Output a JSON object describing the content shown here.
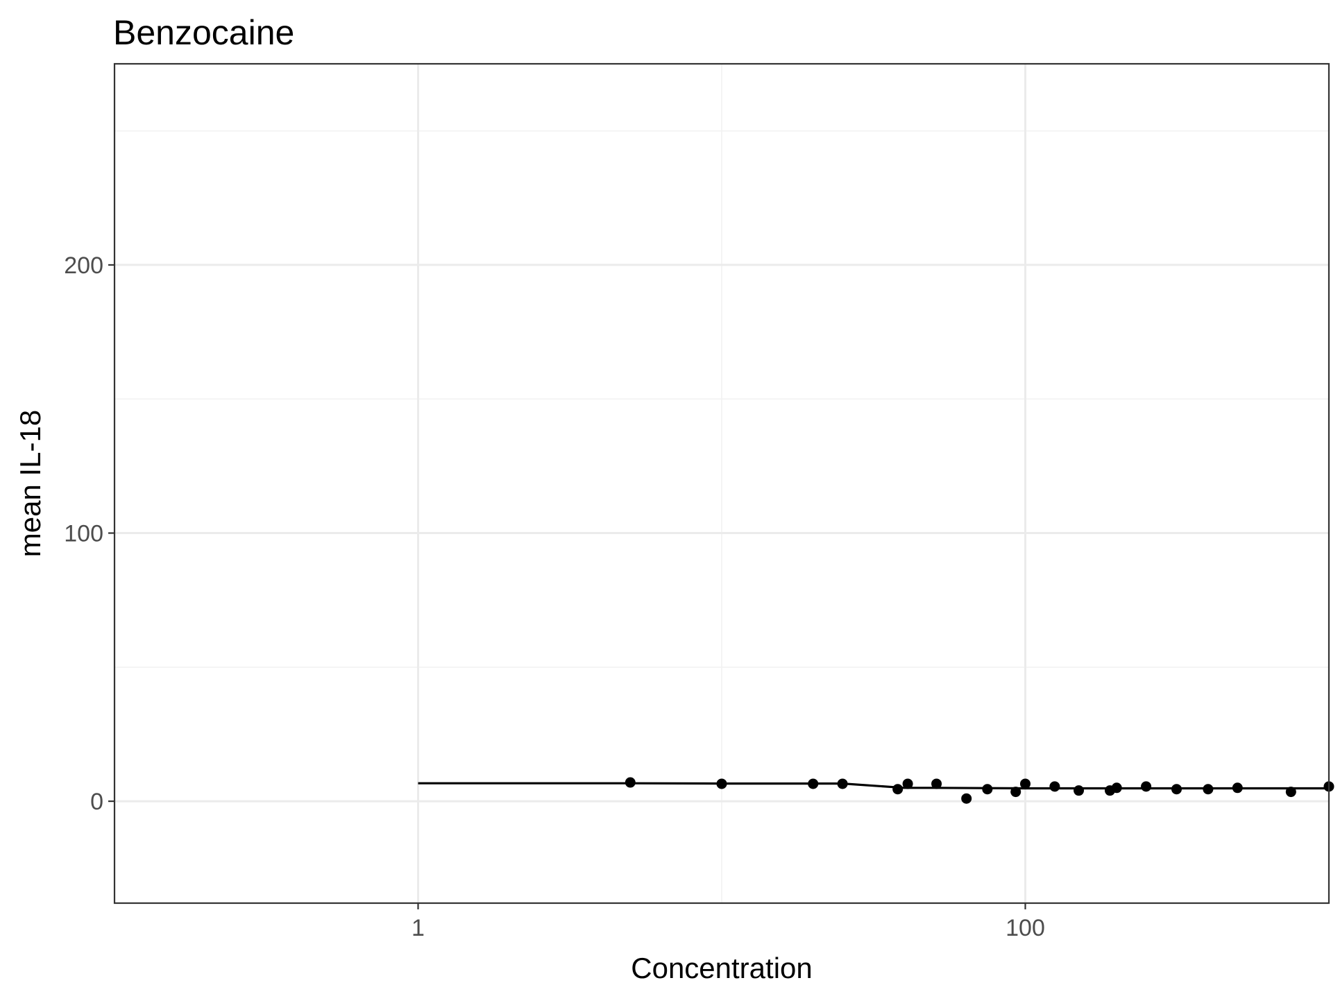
{
  "chart_data": {
    "type": "scatter",
    "title": "Benzocaine",
    "xlabel": "Concentration",
    "ylabel": "mean IL-18",
    "x_scale": "log10",
    "xlim": [
      0.1,
      1000
    ],
    "ylim": [
      -38,
      275
    ],
    "x_ticks": [
      {
        "value": 1,
        "label": "1"
      },
      {
        "value": 100,
        "label": "100"
      }
    ],
    "x_minor_ticks": [
      0.1,
      10,
      1000
    ],
    "y_ticks": [
      {
        "value": 0,
        "label": "0"
      },
      {
        "value": 100,
        "label": "100"
      },
      {
        "value": 200,
        "label": "200"
      }
    ],
    "y_minor_ticks": [
      50,
      150,
      250
    ],
    "grid": true,
    "legend": "none",
    "series": [
      {
        "type": "points",
        "x": [
          5,
          10,
          20,
          25,
          38,
          41,
          51,
          64,
          75,
          93,
          100,
          125,
          150,
          190,
          200,
          250,
          315,
          400,
          500,
          750,
          1000
        ],
        "y": [
          7,
          6.5,
          6.5,
          6.5,
          4.5,
          6.5,
          6.5,
          1,
          4.5,
          3.5,
          6.5,
          5.5,
          4,
          4,
          5,
          5.5,
          4.5,
          4.5,
          5,
          3.5,
          5.5
        ]
      },
      {
        "type": "line",
        "x": [
          1,
          5,
          10,
          25,
          40,
          50,
          100,
          1000
        ],
        "y": [
          6.7,
          6.7,
          6.6,
          6.6,
          5.0,
          5.0,
          4.8,
          4.8
        ]
      }
    ]
  }
}
